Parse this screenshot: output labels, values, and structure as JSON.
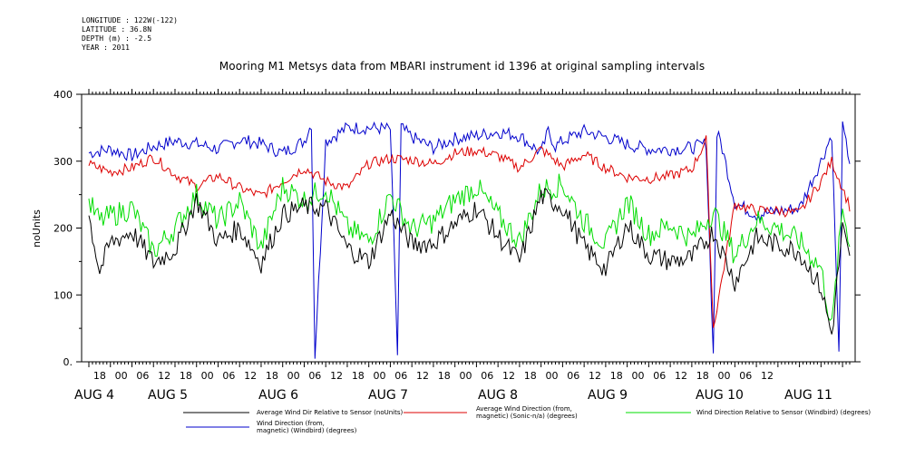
{
  "header": {
    "meta_lines": [
      "LONGITUDE : 122W(-122)",
      "LATITUDE : 36.8N",
      "DEPTH (m) : -2.5",
      "YEAR : 2011"
    ],
    "title": "Mooring M1 Metsys data from MBARI instrument id 1396 at original sampling intervals"
  },
  "chart_data": {
    "type": "line",
    "title": "Mooring M1 Metsys data from MBARI instrument id 1396 at original sampling intervals",
    "xlabel": "",
    "ylabel": "noUnits",
    "ylim": [
      0,
      400
    ],
    "yticks": [
      "0.",
      "100",
      "200",
      "300",
      "400"
    ],
    "xlim_hours": [
      0,
      212
    ],
    "hour_tick_labels": [
      "18",
      "00",
      "06",
      "12",
      "18",
      "00",
      "06",
      "12",
      "18",
      "00",
      "06",
      "12",
      "18",
      "00",
      "06",
      "12",
      "18",
      "00",
      "06",
      "12",
      "18",
      "00",
      "06",
      "12",
      "18",
      "00",
      "06",
      "12",
      "18",
      "00",
      "06",
      "12"
    ],
    "date_labels": [
      "AUG  4",
      "AUG  5",
      "AUG  6",
      "AUG  7",
      "AUG  8",
      "AUG  9",
      "AUG 10",
      "AUG 11"
    ],
    "grid": false,
    "legend_position": "bottom",
    "colors": {
      "rel_sensor": "#000000",
      "avg_dir": "#dd0000",
      "rel_windbird": "#00dd00",
      "windbird": "#0000cc"
    },
    "series": [
      {
        "key": "windbird",
        "name": "Wind Direction (from,\n     magnetic) (Windbird) (degrees)",
        "x": [
          0,
          6,
          12,
          18,
          24,
          30,
          36,
          42,
          48,
          54,
          60,
          62,
          63,
          66,
          72,
          78,
          84,
          86,
          87,
          90,
          96,
          102,
          108,
          114,
          120,
          126,
          128,
          130,
          132,
          138,
          144,
          150,
          156,
          162,
          168,
          172,
          174,
          175,
          176,
          180,
          186,
          192,
          198,
          204,
          207,
          209,
          210,
          212
        ],
        "values": [
          312,
          318,
          308,
          322,
          330,
          326,
          318,
          332,
          326,
          312,
          330,
          356,
          10,
          330,
          350,
          350,
          348,
          10,
          350,
          336,
          320,
          334,
          338,
          344,
          338,
          312,
          345,
          322,
          330,
          345,
          336,
          325,
          318,
          318,
          320,
          326,
          10,
          340,
          330,
          238,
          220,
          225,
          230,
          300,
          340,
          10,
          350,
          300
        ]
      },
      {
        "key": "avg_dir",
        "name": "Average Wind Direction (from,\n     magnetic) (Sonic-n/a) (degrees)",
        "x": [
          0,
          6,
          12,
          18,
          24,
          30,
          36,
          42,
          48,
          54,
          60,
          66,
          72,
          78,
          84,
          90,
          96,
          102,
          108,
          114,
          120,
          126,
          132,
          138,
          144,
          150,
          156,
          162,
          168,
          172,
          174,
          180,
          186,
          192,
          198,
          204,
          207,
          210,
          212
        ],
        "values": [
          295,
          284,
          290,
          306,
          280,
          262,
          278,
          260,
          248,
          270,
          290,
          270,
          260,
          296,
          304,
          302,
          296,
          312,
          316,
          308,
          290,
          318,
          292,
          310,
          290,
          276,
          274,
          278,
          288,
          332,
          50,
          236,
          226,
          226,
          222,
          270,
          300,
          260,
          232
        ]
      },
      {
        "key": "rel_windbird",
        "name": "Wind Direction Relative to Sensor (Windbird) (degrees)",
        "x": [
          0,
          3,
          6,
          12,
          18,
          24,
          30,
          36,
          42,
          48,
          54,
          60,
          66,
          72,
          78,
          84,
          90,
          96,
          102,
          108,
          114,
          120,
          126,
          132,
          138,
          144,
          150,
          156,
          162,
          168,
          174,
          180,
          186,
          192,
          198,
          204,
          207,
          210,
          212
        ],
        "values": [
          238,
          210,
          218,
          230,
          165,
          200,
          250,
          210,
          240,
          170,
          262,
          242,
          260,
          200,
          180,
          250,
          198,
          210,
          242,
          262,
          218,
          180,
          258,
          265,
          210,
          175,
          240,
          190,
          205,
          185,
          225,
          160,
          212,
          200,
          180,
          140,
          50,
          230,
          180
        ]
      },
      {
        "key": "rel_sensor",
        "name": "Average Wind Dir Relative to Sensor (noUnits)",
        "x": [
          0,
          3,
          6,
          12,
          18,
          24,
          30,
          36,
          42,
          48,
          54,
          60,
          66,
          72,
          78,
          84,
          90,
          96,
          102,
          108,
          114,
          120,
          126,
          132,
          138,
          144,
          150,
          156,
          162,
          168,
          174,
          180,
          186,
          192,
          198,
          204,
          207,
          210,
          212
        ],
        "values": [
          218,
          135,
          178,
          195,
          148,
          168,
          242,
          180,
          200,
          148,
          220,
          232,
          230,
          170,
          150,
          222,
          176,
          178,
          206,
          230,
          188,
          150,
          248,
          232,
          172,
          138,
          205,
          160,
          150,
          155,
          195,
          120,
          185,
          175,
          165,
          110,
          40,
          200,
          150
        ]
      }
    ]
  }
}
